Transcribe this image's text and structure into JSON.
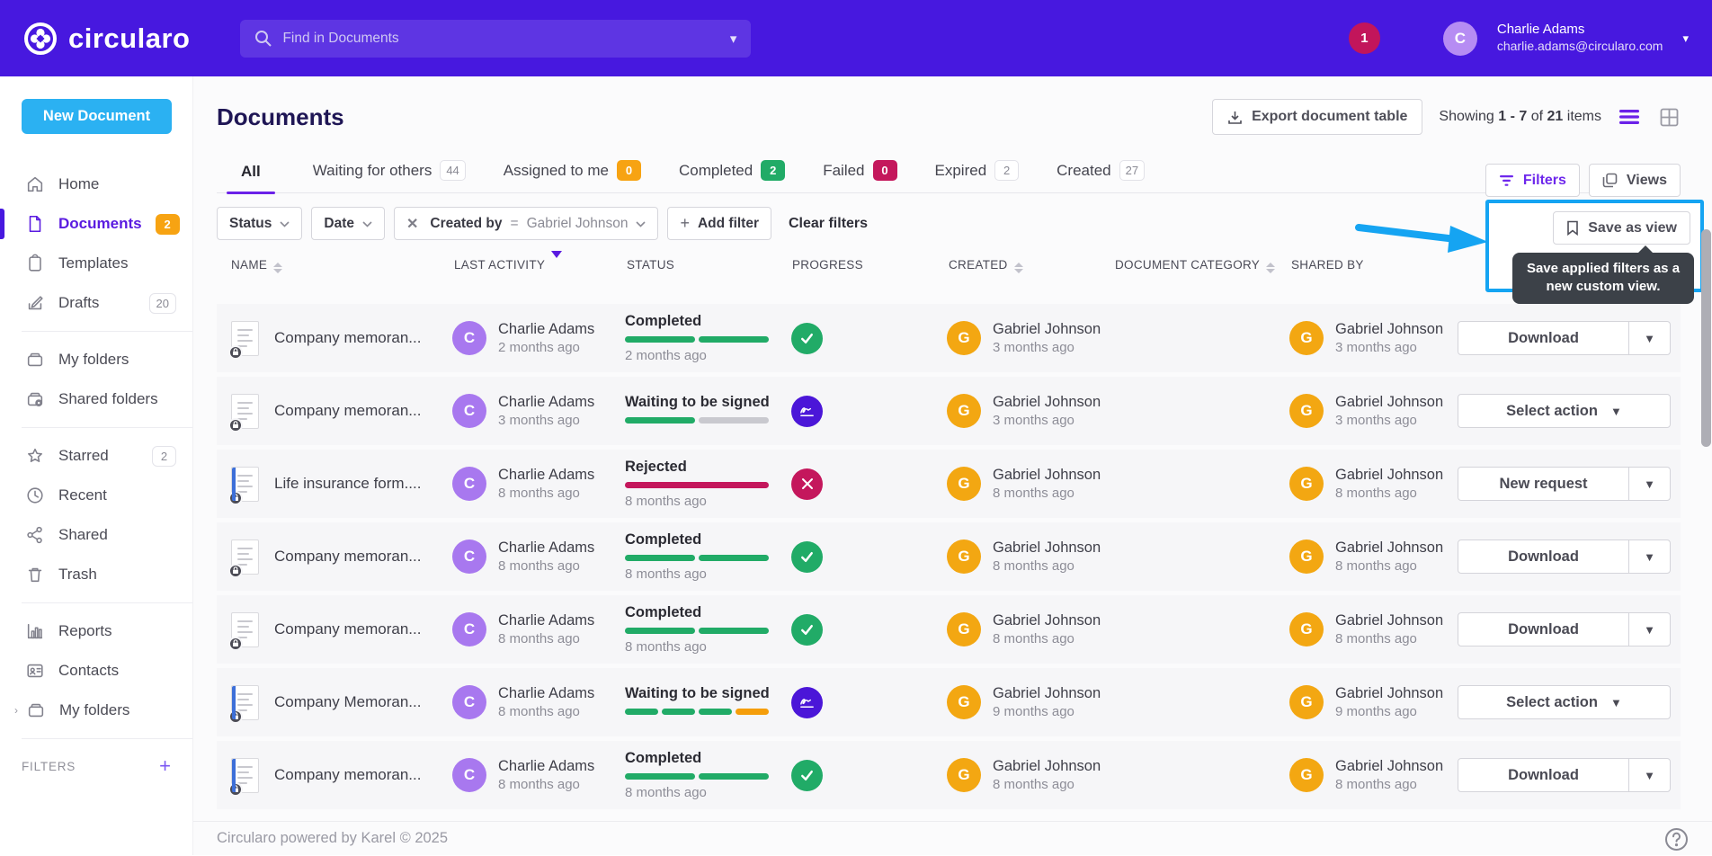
{
  "colors": {
    "topbar_purple": "#4718DF",
    "accent_purple": "#5A1BE0",
    "new_document_blue": "#2BB1F2",
    "annotation_blue": "#15A4F2",
    "success_green": "#21AB67",
    "warning_orange": "#F7A312",
    "danger_crimson": "#C4175C",
    "signature_indigo": "#4B16D8"
  },
  "topbar": {
    "brand": "circularo",
    "search_placeholder": "Find in Documents",
    "notification_count": "1",
    "user_name": "Charlie Adams",
    "user_email": "charlie.adams@circularo.com",
    "user_initial": "C"
  },
  "sidebar": {
    "new_document": "New Document",
    "filters_label": "FILTERS",
    "groups": [
      [
        {
          "id": "home",
          "label": "Home",
          "icon": "home-icon"
        },
        {
          "id": "documents",
          "label": "Documents",
          "icon": "document-icon",
          "active": true,
          "badge": "2",
          "badge_style": "orange"
        },
        {
          "id": "templates",
          "label": "Templates",
          "icon": "clipboard-icon"
        },
        {
          "id": "drafts",
          "label": "Drafts",
          "icon": "edit-icon",
          "badge": "20",
          "badge_style": "neutral"
        }
      ],
      [
        {
          "id": "my-folders",
          "label": "My folders",
          "icon": "folder-icon"
        },
        {
          "id": "shared-folders",
          "label": "Shared folders",
          "icon": "folder-shared-icon"
        }
      ],
      [
        {
          "id": "starred",
          "label": "Starred",
          "icon": "star-icon",
          "badge": "2",
          "badge_style": "neutral"
        },
        {
          "id": "recent",
          "label": "Recent",
          "icon": "clock-icon"
        },
        {
          "id": "shared",
          "label": "Shared",
          "icon": "share-icon"
        },
        {
          "id": "trash",
          "label": "Trash",
          "icon": "trash-icon"
        }
      ],
      [
        {
          "id": "reports",
          "label": "Reports",
          "icon": "chart-icon"
        },
        {
          "id": "contacts",
          "label": "Contacts",
          "icon": "contact-icon"
        },
        {
          "id": "my-folders-tree",
          "label": "My folders",
          "icon": "folder-icon",
          "chevron": true
        }
      ]
    ]
  },
  "header": {
    "title": "Documents",
    "export_label": "Export document table",
    "showing": {
      "prefix": "Showing",
      "range": "1 - 7",
      "of": "of",
      "total": "21",
      "items": "items"
    }
  },
  "tabs": [
    {
      "label": "All",
      "count": null,
      "style": "none",
      "active": true
    },
    {
      "label": "Waiting for others",
      "count": "44",
      "style": "neutral"
    },
    {
      "label": "Assigned to me",
      "count": "0",
      "style": "orange"
    },
    {
      "label": "Completed",
      "count": "2",
      "style": "green"
    },
    {
      "label": "Failed",
      "count": "0",
      "style": "red"
    },
    {
      "label": "Expired",
      "count": "2",
      "style": "neutral"
    },
    {
      "label": "Created",
      "count": "27",
      "style": "neutral"
    }
  ],
  "filter_bar": {
    "status_label": "Status",
    "date_label": "Date",
    "created_by_label": "Created by",
    "created_by_operator": "=",
    "created_by_value": "Gabriel Johnson",
    "add_filter_label": "Add filter",
    "clear_filters_label": "Clear filters"
  },
  "view_controls": {
    "filters_label": "Filters",
    "views_label": "Views",
    "save_as_view_label": "Save as view",
    "tooltip_text": "Save applied filters as a new custom view."
  },
  "table": {
    "columns": [
      {
        "label": "NAME",
        "sort": "both"
      },
      {
        "label": "LAST ACTIVITY",
        "sort": "desc"
      },
      {
        "label": "STATUS",
        "sort": "none"
      },
      {
        "label": "PROGRESS",
        "sort": "none"
      },
      {
        "label": "CREATED",
        "sort": "both"
      },
      {
        "label": "DOCUMENT CATEGORY",
        "sort": "both"
      },
      {
        "label": "SHARED BY",
        "sort": "none"
      }
    ],
    "rows": [
      {
        "name": "Company memoran...",
        "doc_variant": "plain",
        "last_activity": {
          "initial": "C",
          "color": "purple",
          "name": "Charlie Adams",
          "time": "2 months ago"
        },
        "status": {
          "label": "Completed",
          "time": "2 months ago",
          "segments": [
            "green",
            "green"
          ],
          "icon": "check"
        },
        "created": {
          "initial": "G",
          "color": "orange",
          "name": "Gabriel Johnson",
          "time": "3 months ago"
        },
        "category": "",
        "shared_by": {
          "initial": "G",
          "color": "orange",
          "name": "Gabriel Johnson",
          "time": "3 months ago"
        },
        "action": {
          "label": "Download",
          "type": "split"
        }
      },
      {
        "name": "Company memoran...",
        "doc_variant": "plain",
        "last_activity": {
          "initial": "C",
          "color": "purple",
          "name": "Charlie Adams",
          "time": "3 months ago"
        },
        "status": {
          "label": "Waiting to be signed",
          "time": "",
          "segments": [
            "green",
            "gray"
          ],
          "icon": "sign"
        },
        "created": {
          "initial": "G",
          "color": "orange",
          "name": "Gabriel Johnson",
          "time": "3 months ago"
        },
        "category": "",
        "shared_by": {
          "initial": "G",
          "color": "orange",
          "name": "Gabriel Johnson",
          "time": "3 months ago"
        },
        "action": {
          "label": "Select action",
          "type": "single"
        }
      },
      {
        "name": "Life insurance form....",
        "doc_variant": "blue",
        "last_activity": {
          "initial": "C",
          "color": "purple",
          "name": "Charlie Adams",
          "time": "8 months ago"
        },
        "status": {
          "label": "Rejected",
          "time": "8 months ago",
          "segments": [
            "red"
          ],
          "icon": "cross"
        },
        "created": {
          "initial": "G",
          "color": "orange",
          "name": "Gabriel Johnson",
          "time": "8 months ago"
        },
        "category": "",
        "shared_by": {
          "initial": "G",
          "color": "orange",
          "name": "Gabriel Johnson",
          "time": "8 months ago"
        },
        "action": {
          "label": "New request",
          "type": "split"
        }
      },
      {
        "name": "Company memoran...",
        "doc_variant": "plain",
        "last_activity": {
          "initial": "C",
          "color": "purple",
          "name": "Charlie Adams",
          "time": "8 months ago"
        },
        "status": {
          "label": "Completed",
          "time": "8 months ago",
          "segments": [
            "green",
            "green"
          ],
          "icon": "check"
        },
        "created": {
          "initial": "G",
          "color": "orange",
          "name": "Gabriel Johnson",
          "time": "8 months ago"
        },
        "category": "",
        "shared_by": {
          "initial": "G",
          "color": "orange",
          "name": "Gabriel Johnson",
          "time": "8 months ago"
        },
        "action": {
          "label": "Download",
          "type": "split"
        }
      },
      {
        "name": "Company memoran...",
        "doc_variant": "plain",
        "last_activity": {
          "initial": "C",
          "color": "purple",
          "name": "Charlie Adams",
          "time": "8 months ago"
        },
        "status": {
          "label": "Completed",
          "time": "8 months ago",
          "segments": [
            "green",
            "green"
          ],
          "icon": "check"
        },
        "created": {
          "initial": "G",
          "color": "orange",
          "name": "Gabriel Johnson",
          "time": "8 months ago"
        },
        "category": "",
        "shared_by": {
          "initial": "G",
          "color": "orange",
          "name": "Gabriel Johnson",
          "time": "8 months ago"
        },
        "action": {
          "label": "Download",
          "type": "split"
        }
      },
      {
        "name": "Company Memoran...",
        "doc_variant": "blue",
        "last_activity": {
          "initial": "C",
          "color": "purple",
          "name": "Charlie Adams",
          "time": "8 months ago"
        },
        "status": {
          "label": "Waiting to be signed",
          "time": "",
          "segments": [
            "green",
            "green",
            "green",
            "orange"
          ],
          "icon": "sign"
        },
        "created": {
          "initial": "G",
          "color": "orange",
          "name": "Gabriel Johnson",
          "time": "9 months ago"
        },
        "category": "",
        "shared_by": {
          "initial": "G",
          "color": "orange",
          "name": "Gabriel Johnson",
          "time": "9 months ago"
        },
        "action": {
          "label": "Select action",
          "type": "single"
        }
      },
      {
        "name": "Company memoran...",
        "doc_variant": "blue",
        "last_activity": {
          "initial": "C",
          "color": "purple",
          "name": "Charlie Adams",
          "time": "8 months ago"
        },
        "status": {
          "label": "Completed",
          "time": "8 months ago",
          "segments": [
            "green",
            "green"
          ],
          "icon": "check"
        },
        "created": {
          "initial": "G",
          "color": "orange",
          "name": "Gabriel Johnson",
          "time": "8 months ago"
        },
        "category": "",
        "shared_by": {
          "initial": "G",
          "color": "orange",
          "name": "Gabriel Johnson",
          "time": "8 months ago"
        },
        "action": {
          "label": "Download",
          "type": "split"
        }
      }
    ]
  },
  "footer": {
    "text": "Circularo powered by Karel © 2025"
  }
}
